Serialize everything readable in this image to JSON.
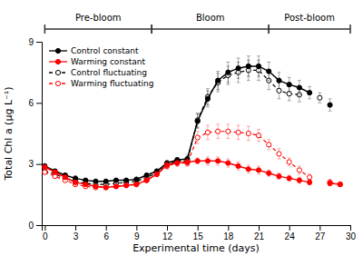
{
  "chart_data": {
    "type": "line",
    "xlabel": "Experimental time (days)",
    "ylabel": "Total Chl a (μg L⁻¹)",
    "x": [
      0,
      1,
      2,
      3,
      4,
      5,
      6,
      7,
      8,
      9,
      10,
      11,
      12,
      13,
      14,
      15,
      16,
      17,
      18,
      19,
      20,
      21,
      22,
      23,
      24,
      25,
      26,
      27,
      28,
      29
    ],
    "series": [
      {
        "name": "Control constant",
        "color": "black",
        "line_style": "solid",
        "marker": "filled",
        "values": [
          2.9,
          2.65,
          2.45,
          2.3,
          2.2,
          2.15,
          2.15,
          2.2,
          2.2,
          2.25,
          2.45,
          2.65,
          3.05,
          3.2,
          3.25,
          5.1,
          6.2,
          7.1,
          7.5,
          7.7,
          7.8,
          7.8,
          7.55,
          7.1,
          6.9,
          6.75,
          6.5,
          null,
          5.9,
          null
        ],
        "errors": [
          0.1,
          0.08,
          0.07,
          0.06,
          0.05,
          0.05,
          0.05,
          0.05,
          0.05,
          0.05,
          0.07,
          0.1,
          0.12,
          0.12,
          0.2,
          0.35,
          0.4,
          0.45,
          0.5,
          0.5,
          0.5,
          0.5,
          0.45,
          0.4,
          0.35,
          0.35,
          0.3,
          null,
          0.3,
          null
        ]
      },
      {
        "name": "Warming constant",
        "color": "red",
        "line_style": "solid",
        "marker": "filled",
        "values": [
          2.85,
          2.6,
          2.35,
          2.1,
          2.0,
          1.9,
          1.85,
          1.9,
          1.95,
          2.0,
          2.2,
          2.5,
          2.95,
          3.05,
          3.1,
          3.15,
          3.15,
          3.15,
          3.05,
          2.9,
          2.75,
          2.7,
          2.55,
          2.4,
          2.3,
          2.2,
          2.1,
          null,
          2.05,
          2.0
        ],
        "errors": [
          0.1,
          0.08,
          0.07,
          0.06,
          0.05,
          0.05,
          0.05,
          0.05,
          0.05,
          0.05,
          0.07,
          0.1,
          0.15,
          0.15,
          0.15,
          0.15,
          0.2,
          0.2,
          0.2,
          0.2,
          0.2,
          0.2,
          0.15,
          0.15,
          0.15,
          0.15,
          0.12,
          null,
          0.1,
          0.1
        ]
      },
      {
        "name": "Control fluctuating",
        "color": "black",
        "line_style": "dashed",
        "marker": "open",
        "values": [
          2.65,
          2.5,
          2.3,
          2.15,
          2.05,
          2.0,
          2.0,
          2.05,
          2.1,
          2.15,
          2.35,
          2.55,
          2.95,
          3.15,
          3.15,
          5.15,
          6.3,
          7.0,
          7.35,
          7.5,
          7.6,
          7.6,
          7.1,
          6.6,
          6.45,
          6.4,
          null,
          6.25,
          null,
          null
        ],
        "errors": [
          0.1,
          0.08,
          0.07,
          0.06,
          0.05,
          0.05,
          0.05,
          0.05,
          0.05,
          0.05,
          0.07,
          0.1,
          0.15,
          0.15,
          0.2,
          0.35,
          0.4,
          0.45,
          0.45,
          0.5,
          0.5,
          0.5,
          0.45,
          0.4,
          0.35,
          0.35,
          null,
          0.25,
          null,
          null
        ]
      },
      {
        "name": "Warming fluctuating",
        "color": "red",
        "line_style": "dashed",
        "marker": "open",
        "values": [
          2.6,
          2.4,
          2.2,
          2.0,
          1.9,
          1.85,
          1.85,
          1.9,
          1.95,
          2.0,
          2.2,
          2.5,
          2.9,
          3.05,
          3.05,
          4.3,
          4.55,
          4.6,
          4.6,
          4.55,
          4.5,
          4.4,
          3.95,
          3.5,
          3.1,
          2.7,
          2.35,
          null,
          2.1,
          2.0
        ],
        "errors": [
          0.1,
          0.08,
          0.07,
          0.06,
          0.05,
          0.05,
          0.05,
          0.05,
          0.05,
          0.05,
          0.07,
          0.1,
          0.15,
          0.15,
          0.15,
          0.3,
          0.35,
          0.35,
          0.35,
          0.35,
          0.35,
          0.3,
          0.25,
          0.25,
          0.2,
          0.2,
          0.15,
          null,
          0.15,
          0.1
        ]
      }
    ],
    "xlim": [
      -0.3,
      30
    ],
    "ylim": [
      0,
      9
    ],
    "xticks": [
      0,
      3,
      6,
      9,
      12,
      15,
      18,
      21,
      24,
      27,
      30
    ],
    "yticks": [
      0,
      3,
      6,
      9
    ],
    "annotations": [
      {
        "text": "Pre-bloom",
        "x_start": 0,
        "x_end": 10.5
      },
      {
        "text": "Bloom",
        "x_start": 10.5,
        "x_end": 22.0
      },
      {
        "text": "Post-bloom",
        "x_start": 22.0,
        "x_end": 30.0
      }
    ],
    "legend": "upper left",
    "grid": false
  }
}
